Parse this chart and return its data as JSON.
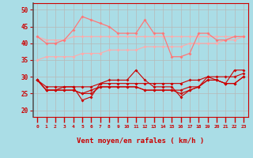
{
  "xlabel": "Vent moyen/en rafales ( km/h )",
  "x": [
    0,
    1,
    2,
    3,
    4,
    5,
    6,
    7,
    8,
    9,
    10,
    11,
    12,
    13,
    14,
    15,
    16,
    17,
    18,
    19,
    20,
    21,
    22,
    23
  ],
  "line_rafale_jagged": [
    42,
    40,
    40,
    41,
    44,
    48,
    47,
    46,
    45,
    43,
    43,
    43,
    47,
    43,
    43,
    36,
    36,
    37,
    43,
    43,
    41,
    41,
    42,
    42
  ],
  "line_rafale_upper": [
    42,
    41,
    41,
    41,
    42,
    42,
    42,
    42,
    42,
    42,
    42,
    42,
    42,
    42,
    42,
    42,
    42,
    42,
    42,
    42,
    42,
    42,
    42,
    42
  ],
  "line_rafale_lower": [
    35,
    36,
    36,
    36,
    36,
    37,
    37,
    37,
    38,
    38,
    38,
    38,
    39,
    39,
    39,
    39,
    39,
    40,
    40,
    40,
    40,
    41,
    41,
    42
  ],
  "line_vent_jagged": [
    29,
    26,
    26,
    27,
    27,
    23,
    24,
    28,
    29,
    29,
    29,
    32,
    29,
    27,
    27,
    27,
    24,
    26,
    27,
    30,
    29,
    28,
    32,
    32
  ],
  "line_vent_upper": [
    29,
    27,
    27,
    27,
    27,
    27,
    27,
    28,
    28,
    28,
    28,
    28,
    28,
    28,
    28,
    28,
    28,
    29,
    29,
    30,
    30,
    30,
    30,
    31
  ],
  "line_vent_lower": [
    29,
    26,
    26,
    26,
    26,
    25,
    25,
    27,
    27,
    27,
    27,
    27,
    26,
    26,
    26,
    26,
    25,
    26,
    27,
    29,
    29,
    28,
    28,
    30
  ],
  "line_vent_mid": [
    29,
    26,
    26,
    26,
    26,
    25,
    26,
    27,
    27,
    27,
    27,
    27,
    26,
    26,
    26,
    26,
    26,
    27,
    27,
    29,
    29,
    28,
    28,
    30
  ],
  "bg_color": "#aadde6",
  "grid_color": "#b8b8b8",
  "color_dark_red": "#cc0000",
  "color_light_pink": "#ffaaaa",
  "color_medium_pink": "#ff7777",
  "ylim_min": 18,
  "ylim_max": 52,
  "yticks": [
    20,
    25,
    30,
    35,
    40,
    45,
    50
  ]
}
